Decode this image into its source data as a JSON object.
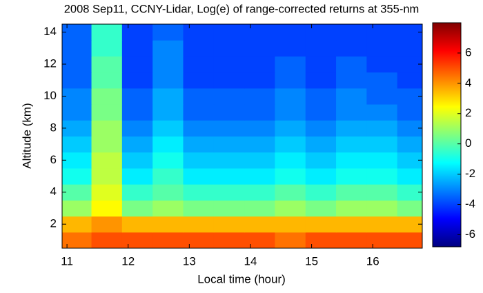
{
  "chart_data": {
    "type": "heatmap",
    "title": "2008 Sep11, CCNY-Lidar, Log(e) of range-corrected returns at 355-nm",
    "x_label": "Local time (hour)",
    "y_label": "Altitude (km)",
    "x": [
      11.15,
      11.65,
      12.15,
      12.65,
      13.15,
      13.65,
      14.15,
      14.65,
      15.15,
      15.65,
      16.15,
      16.65
    ],
    "y": [
      1,
      2,
      3,
      4,
      5,
      6,
      7,
      8,
      9,
      10,
      11,
      12,
      13,
      14
    ],
    "z": [
      [
        4.5,
        5,
        5,
        5,
        5,
        5,
        5,
        4.5,
        5,
        5,
        5,
        5
      ],
      [
        3.5,
        4,
        3.5,
        3.5,
        3.5,
        3.5,
        3.5,
        3.5,
        3.5,
        3.5,
        3.5,
        3.5
      ],
      [
        1,
        2.5,
        0.5,
        1,
        0.5,
        0.5,
        0.5,
        1,
        0.5,
        1,
        1,
        0.5
      ],
      [
        0,
        2,
        -0.5,
        0,
        -0.5,
        -0.5,
        -0.5,
        0,
        -0.5,
        0,
        0,
        -0.5
      ],
      [
        -1,
        1.5,
        -1.5,
        -0.5,
        -1.5,
        -1.5,
        -1.5,
        -1,
        -1.5,
        -1,
        -1,
        -1.5
      ],
      [
        -1.5,
        1.5,
        -2,
        -1,
        -2,
        -2,
        -2,
        -1.5,
        -2,
        -1.5,
        -1.5,
        -2
      ],
      [
        -2,
        1,
        -2.5,
        -1.5,
        -2.5,
        -2.5,
        -2.5,
        -2,
        -2.5,
        -2,
        -2,
        -2.5
      ],
      [
        -2.5,
        1,
        -3,
        -2,
        -3,
        -3,
        -3,
        -2.5,
        -3,
        -2.5,
        -2.5,
        -3
      ],
      [
        -3,
        0.5,
        -3.5,
        -2.5,
        -3.5,
        -3.5,
        -3.5,
        -3,
        -3.5,
        -3,
        -3,
        -3.5
      ],
      [
        -3,
        0.5,
        -3.5,
        -2.5,
        -3.5,
        -3.5,
        -3.5,
        -3,
        -3.5,
        -3,
        -3.5,
        -3.5
      ],
      [
        -3.5,
        0,
        -4,
        -3,
        -4,
        -4,
        -4,
        -3.5,
        -4,
        -3.5,
        -3.5,
        -4
      ],
      [
        -3.5,
        0,
        -4,
        -3,
        -4,
        -4,
        -4,
        -3.5,
        -4,
        -3.5,
        -4,
        -4
      ],
      [
        -3.5,
        -0.5,
        -4,
        -3,
        -4,
        -4,
        -4,
        -4,
        -4,
        -4,
        -4,
        -4
      ],
      [
        -3.5,
        -0.5,
        -4,
        -3.5,
        -4,
        -4,
        -4,
        -4,
        -4,
        -4,
        -4,
        -4
      ]
    ],
    "xlim": [
      10.92,
      16.81
    ],
    "ylim": [
      0.5,
      14.5
    ],
    "zlim": [
      -6.8,
      8
    ],
    "xticks": [
      11,
      12,
      13,
      14,
      15,
      16
    ],
    "yticks": [
      2,
      4,
      6,
      8,
      10,
      12,
      14
    ],
    "zticks": [
      -6,
      -4,
      -2,
      0,
      2,
      4,
      6
    ],
    "colormap": "jet"
  }
}
